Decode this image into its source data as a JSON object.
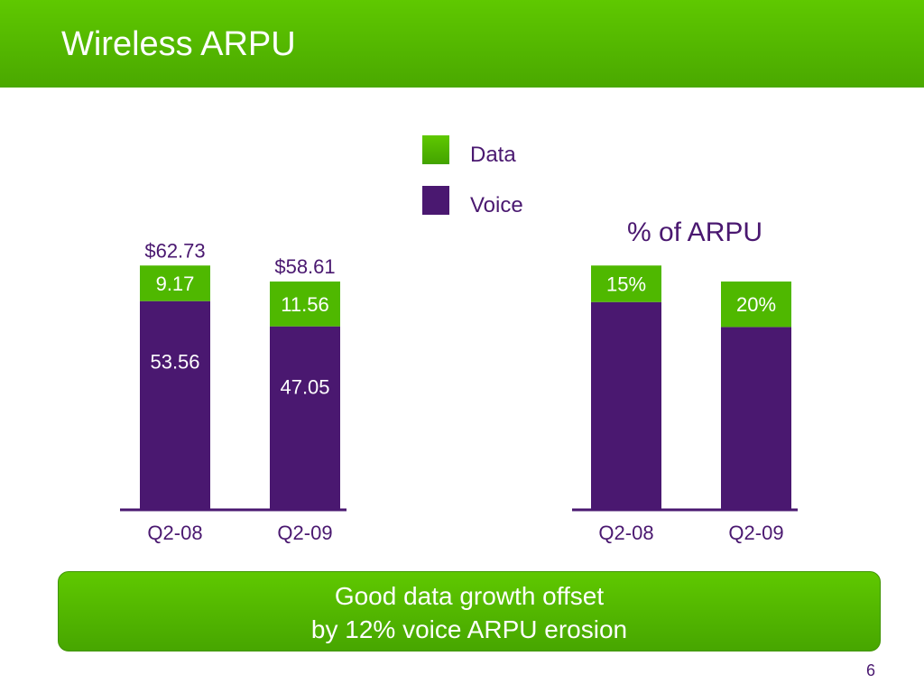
{
  "slide": {
    "title": "Wireless ARPU",
    "callout_line1": "Good data growth offset",
    "callout_line2": "by 12% voice ARPU erosion",
    "page_number": "6"
  },
  "legend": {
    "data_label": "Data",
    "voice_label": "Voice"
  },
  "colors": {
    "data": "#4fb800",
    "voice": "#4a1870",
    "header": "#5fc800"
  },
  "chart_data": [
    {
      "type": "bar",
      "stacked": true,
      "title": "",
      "categories": [
        "Q2-08",
        "Q2-09"
      ],
      "series": [
        {
          "name": "Voice",
          "values": [
            53.56,
            47.05
          ],
          "labels": [
            "53.56",
            "47.05"
          ]
        },
        {
          "name": "Data",
          "values": [
            9.17,
            11.56
          ],
          "labels": [
            "9.17",
            "11.56"
          ]
        }
      ],
      "totals": [
        "$62.73",
        "$58.61"
      ],
      "total_values": [
        62.73,
        58.61
      ],
      "ylim": [
        0,
        62.73
      ],
      "grid": false,
      "legend": "top"
    },
    {
      "type": "bar",
      "stacked": true,
      "title": "% of ARPU",
      "categories": [
        "Q2-08",
        "Q2-09"
      ],
      "series": [
        {
          "name": "Voice",
          "values": [
            85,
            80
          ]
        },
        {
          "name": "Data",
          "values": [
            15,
            20
          ],
          "labels": [
            "15%",
            "20%"
          ]
        }
      ],
      "reference_totals": [
        62.73,
        58.61
      ],
      "grid": false,
      "legend": "top"
    }
  ]
}
